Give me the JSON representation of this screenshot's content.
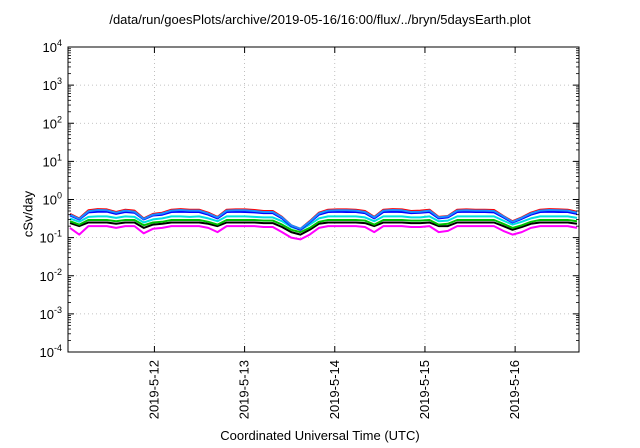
{
  "chart_data": {
    "type": "line",
    "title": "/data/run/goesPlots/archive/2019-05-16/16:00/flux/../bryn/5daysEarth.plot",
    "xlabel": "Coordinated Universal Time (UTC)",
    "ylabel": "cSv/day",
    "yscale": "log",
    "ylim": [
      0.0001,
      10000
    ],
    "ytick_labels": [
      {
        "base": "10",
        "exp": "-4"
      },
      {
        "base": "10",
        "exp": "-3"
      },
      {
        "base": "10",
        "exp": "-2"
      },
      {
        "base": "10",
        "exp": "-1"
      },
      {
        "base": "10",
        "exp": "0"
      },
      {
        "base": "10",
        "exp": "1"
      },
      {
        "base": "10",
        "exp": "2"
      },
      {
        "base": "10",
        "exp": "3"
      },
      {
        "base": "10",
        "exp": "4"
      }
    ],
    "xlim": [
      "2019-05-11T01:00",
      "2019-05-16T17:00"
    ],
    "xtick_labels": [
      "2019-5-12",
      "2019-5-13",
      "2019-5-14",
      "2019-5-15",
      "2019-5-16"
    ],
    "grid": true,
    "series": [
      {
        "color": "#ff00ff",
        "values": [
          0.18,
          0.12,
          0.2,
          0.2,
          0.2,
          0.18,
          0.2,
          0.2,
          0.13,
          0.17,
          0.18,
          0.2,
          0.2,
          0.2,
          0.2,
          0.18,
          0.14,
          0.2,
          0.2,
          0.2,
          0.2,
          0.19,
          0.19,
          0.14,
          0.1,
          0.09,
          0.12,
          0.18,
          0.2,
          0.2,
          0.2,
          0.2,
          0.19,
          0.14,
          0.2,
          0.2,
          0.2,
          0.19,
          0.19,
          0.2,
          0.14,
          0.15,
          0.2,
          0.2,
          0.2,
          0.2,
          0.2,
          0.15,
          0.12,
          0.14,
          0.18,
          0.2,
          0.2,
          0.2,
          0.2,
          0.18
        ]
      },
      {
        "color": "#000000",
        "values": [
          0.24,
          0.2,
          0.25,
          0.25,
          0.25,
          0.23,
          0.25,
          0.25,
          0.18,
          0.22,
          0.23,
          0.25,
          0.25,
          0.25,
          0.25,
          0.23,
          0.2,
          0.25,
          0.25,
          0.25,
          0.25,
          0.24,
          0.24,
          0.19,
          0.14,
          0.12,
          0.16,
          0.23,
          0.25,
          0.25,
          0.25,
          0.25,
          0.24,
          0.2,
          0.25,
          0.25,
          0.25,
          0.24,
          0.24,
          0.25,
          0.2,
          0.2,
          0.25,
          0.25,
          0.25,
          0.25,
          0.25,
          0.2,
          0.16,
          0.19,
          0.23,
          0.25,
          0.25,
          0.25,
          0.25,
          0.23
        ]
      },
      {
        "color": "#00c000",
        "values": [
          0.27,
          0.22,
          0.29,
          0.29,
          0.29,
          0.27,
          0.29,
          0.29,
          0.21,
          0.25,
          0.26,
          0.29,
          0.29,
          0.29,
          0.29,
          0.26,
          0.22,
          0.29,
          0.29,
          0.29,
          0.29,
          0.28,
          0.28,
          0.22,
          0.16,
          0.14,
          0.18,
          0.26,
          0.29,
          0.29,
          0.29,
          0.29,
          0.28,
          0.22,
          0.29,
          0.29,
          0.29,
          0.28,
          0.28,
          0.29,
          0.22,
          0.23,
          0.29,
          0.29,
          0.29,
          0.29,
          0.29,
          0.23,
          0.18,
          0.21,
          0.26,
          0.29,
          0.29,
          0.29,
          0.29,
          0.27
        ]
      },
      {
        "color": "#00e0e0",
        "values": [
          0.32,
          0.26,
          0.35,
          0.36,
          0.36,
          0.33,
          0.36,
          0.35,
          0.25,
          0.3,
          0.32,
          0.36,
          0.36,
          0.35,
          0.36,
          0.32,
          0.27,
          0.36,
          0.36,
          0.36,
          0.35,
          0.34,
          0.34,
          0.27,
          0.19,
          0.16,
          0.22,
          0.32,
          0.36,
          0.36,
          0.36,
          0.36,
          0.34,
          0.27,
          0.36,
          0.36,
          0.36,
          0.34,
          0.34,
          0.36,
          0.27,
          0.28,
          0.36,
          0.36,
          0.36,
          0.36,
          0.36,
          0.28,
          0.22,
          0.26,
          0.32,
          0.36,
          0.36,
          0.36,
          0.36,
          0.33
        ]
      },
      {
        "color": "#0000ff",
        "values": [
          0.38,
          0.3,
          0.46,
          0.48,
          0.48,
          0.42,
          0.47,
          0.45,
          0.3,
          0.38,
          0.4,
          0.47,
          0.48,
          0.47,
          0.47,
          0.4,
          0.32,
          0.47,
          0.48,
          0.47,
          0.46,
          0.44,
          0.44,
          0.32,
          0.2,
          0.16,
          0.25,
          0.4,
          0.47,
          0.48,
          0.47,
          0.47,
          0.44,
          0.32,
          0.47,
          0.48,
          0.47,
          0.44,
          0.45,
          0.47,
          0.32,
          0.34,
          0.47,
          0.48,
          0.47,
          0.47,
          0.46,
          0.34,
          0.25,
          0.31,
          0.4,
          0.47,
          0.48,
          0.47,
          0.47,
          0.42
        ]
      },
      {
        "color": "#ff0000",
        "values": [
          0.42,
          0.32,
          0.52,
          0.56,
          0.55,
          0.47,
          0.54,
          0.51,
          0.32,
          0.42,
          0.45,
          0.54,
          0.56,
          0.54,
          0.54,
          0.45,
          0.35,
          0.54,
          0.55,
          0.55,
          0.53,
          0.5,
          0.5,
          0.35,
          0.21,
          0.17,
          0.27,
          0.45,
          0.54,
          0.55,
          0.55,
          0.54,
          0.5,
          0.35,
          0.54,
          0.56,
          0.55,
          0.5,
          0.51,
          0.54,
          0.35,
          0.37,
          0.54,
          0.55,
          0.54,
          0.54,
          0.53,
          0.37,
          0.27,
          0.34,
          0.45,
          0.54,
          0.56,
          0.55,
          0.54,
          0.48
        ]
      },
      {
        "color": "#1a8cff",
        "values": [
          0.4,
          0.31,
          0.49,
          0.53,
          0.52,
          0.45,
          0.51,
          0.48,
          0.31,
          0.4,
          0.43,
          0.51,
          0.53,
          0.51,
          0.51,
          0.43,
          0.34,
          0.51,
          0.52,
          0.52,
          0.5,
          0.47,
          0.47,
          0.34,
          0.21,
          0.17,
          0.26,
          0.43,
          0.51,
          0.52,
          0.52,
          0.51,
          0.47,
          0.34,
          0.51,
          0.53,
          0.52,
          0.47,
          0.48,
          0.51,
          0.34,
          0.36,
          0.51,
          0.52,
          0.51,
          0.51,
          0.5,
          0.36,
          0.26,
          0.33,
          0.43,
          0.51,
          0.53,
          0.52,
          0.51,
          0.45
        ]
      }
    ]
  }
}
